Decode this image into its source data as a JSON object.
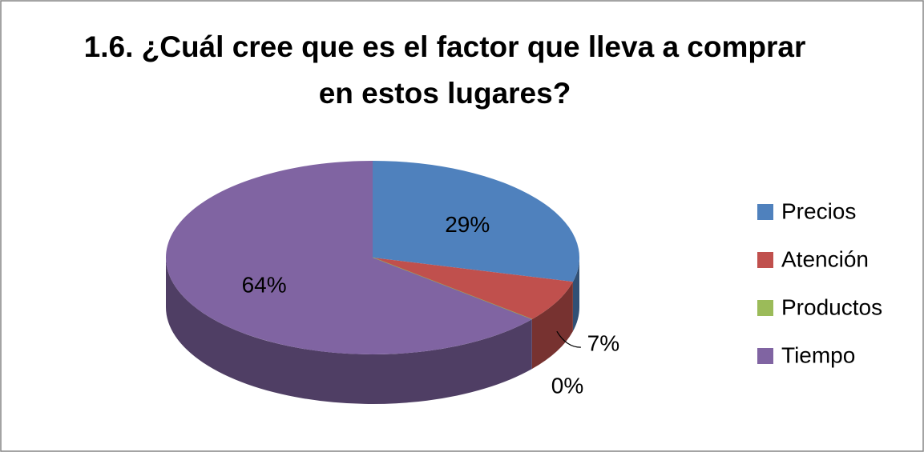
{
  "chart_data": {
    "type": "pie",
    "title": "1.6. ¿Cuál cree que es el factor que lleva a comprar en estos lugares?",
    "categories": [
      "Precios",
      "Atención",
      "Productos",
      "Tiempo"
    ],
    "values": [
      29,
      7,
      0,
      64
    ],
    "value_labels": [
      "29%",
      "7%",
      "0%",
      "64%"
    ],
    "colors": [
      "#4f81bd",
      "#c0504d",
      "#9bbb59",
      "#8064a2"
    ],
    "legend": "right"
  }
}
